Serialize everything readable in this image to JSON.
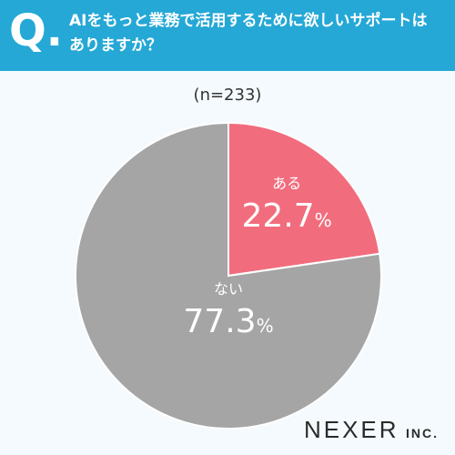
{
  "header": {
    "q_mark": "Q.",
    "question": "AIをもっと業務で活用するために欲しいサポートはありますか？"
  },
  "sample_size": "(n=233)",
  "logo": {
    "main": "NEXER",
    "sub": "INC."
  },
  "colors": {
    "header_bg": "#25a8d6",
    "slice_yes": "#f16d7d",
    "slice_no": "#a5a5a5"
  },
  "chart_data": {
    "type": "pie",
    "title": "AIをもっと業務で活用するために欲しいサポートはありますか？",
    "slices": [
      {
        "label": "ある",
        "value": 22.7,
        "value_text": "22.7",
        "unit": "%",
        "color": "#f16d7d"
      },
      {
        "label": "ない",
        "value": 77.3,
        "value_text": "77.3",
        "unit": "%",
        "color": "#a5a5a5"
      }
    ],
    "start": "12 o'clock",
    "direction": "clockwise"
  }
}
